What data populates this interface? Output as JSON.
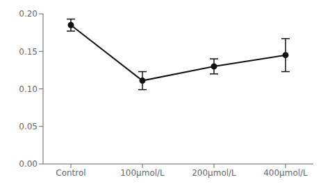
{
  "chart_data": {
    "type": "line",
    "categories": [
      "Control",
      "100μmol/L",
      "200μmol/L",
      "400μmol/L"
    ],
    "values": [
      0.185,
      0.111,
      0.13,
      0.145
    ],
    "errors": [
      0.008,
      0.012,
      0.01,
      0.022
    ],
    "color": "#111111",
    "marker": "circle",
    "ylim": [
      0.0,
      0.2
    ],
    "yticks": [
      {
        "value": 0.0,
        "label": "0.00"
      },
      0.05,
      {
        "value": 0.1,
        "label": "0.10"
      },
      0.15,
      {
        "value": 0.2,
        "label": "0.20"
      }
    ],
    "grid": false
  }
}
